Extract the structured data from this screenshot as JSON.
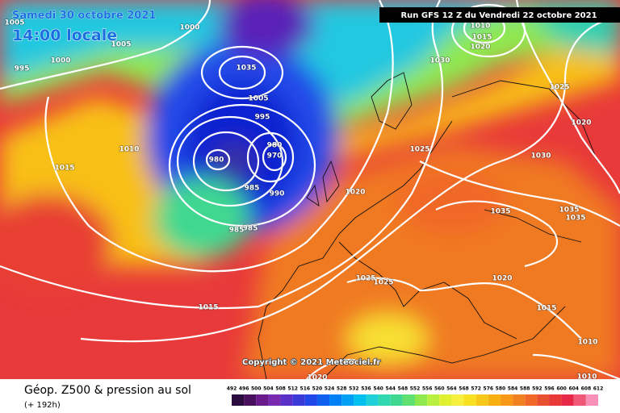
{
  "header": {
    "date": "Samedi 30 octobre 2021",
    "time": "14:00 locale",
    "run": "Run GFS 12 Z du Vendredi 22 octobre 2021"
  },
  "map": {
    "isobar_labels": [
      1005,
      1000,
      1005,
      995,
      1000,
      1035,
      1005,
      995,
      980,
      980,
      970,
      985,
      990,
      1010,
      1015,
      1020,
      1025,
      1030,
      1010,
      1015,
      1020,
      1025,
      1020,
      1030,
      1035,
      1035,
      1035,
      1025,
      1025,
      1020,
      1015,
      1015,
      1010,
      1010,
      1020,
      985,
      985
    ],
    "copyright": "Copyright © 2021 Meteociel.fr"
  },
  "footer": {
    "title": "Géop. Z500 & pression au sol",
    "lead": "(+ 192h)",
    "scale_labels": [
      492,
      496,
      500,
      504,
      508,
      512,
      516,
      520,
      524,
      528,
      532,
      536,
      540,
      544,
      548,
      552,
      556,
      560,
      564,
      568,
      572,
      576,
      580,
      584,
      588,
      592,
      596,
      600,
      604,
      608,
      612
    ],
    "scale_colors": [
      "#2b0a3d",
      "#4a1060",
      "#6a1a8a",
      "#7a2ab0",
      "#5a30c8",
      "#3a3ad8",
      "#2048e8",
      "#1060f0",
      "#0080f8",
      "#00a0f8",
      "#00c0f0",
      "#20d0d8",
      "#30d8b0",
      "#40d890",
      "#60e070",
      "#90e850",
      "#b8f040",
      "#e0f030",
      "#f8f040",
      "#f8e020",
      "#f8c818",
      "#f8b010",
      "#f89818",
      "#f08020",
      "#f06828",
      "#e85030",
      "#e83838",
      "#e82848",
      "#f05878",
      "#f890b8"
    ]
  }
}
